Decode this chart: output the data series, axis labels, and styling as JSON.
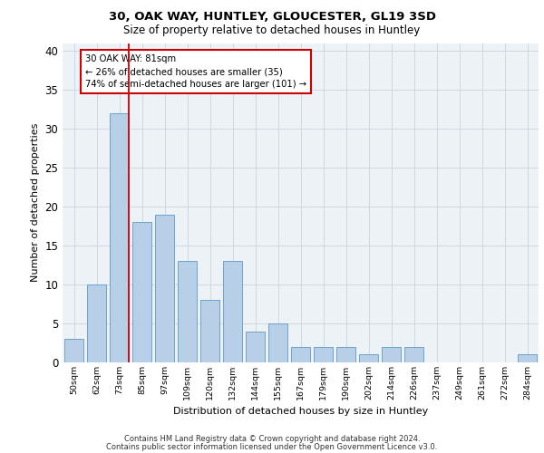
{
  "title_line1": "30, OAK WAY, HUNTLEY, GLOUCESTER, GL19 3SD",
  "title_line2": "Size of property relative to detached houses in Huntley",
  "xlabel": "Distribution of detached houses by size in Huntley",
  "ylabel": "Number of detached properties",
  "categories": [
    "50sqm",
    "62sqm",
    "73sqm",
    "85sqm",
    "97sqm",
    "109sqm",
    "120sqm",
    "132sqm",
    "144sqm",
    "155sqm",
    "167sqm",
    "179sqm",
    "190sqm",
    "202sqm",
    "214sqm",
    "226sqm",
    "237sqm",
    "249sqm",
    "261sqm",
    "272sqm",
    "284sqm"
  ],
  "values": [
    3,
    10,
    32,
    18,
    19,
    13,
    8,
    13,
    4,
    5,
    2,
    2,
    2,
    1,
    2,
    2,
    0,
    0,
    0,
    0,
    1
  ],
  "bar_color": "#b8cfe8",
  "bar_edge_color": "#6ea3cc",
  "reference_line_color": "#cc0000",
  "reference_line_x": 2.425,
  "annotation_text": "30 OAK WAY: 81sqm\n← 26% of detached houses are smaller (35)\n74% of semi-detached houses are larger (101) →",
  "annotation_box_color": "white",
  "annotation_box_edge_color": "#cc0000",
  "ylim": [
    0,
    41
  ],
  "yticks": [
    0,
    5,
    10,
    15,
    20,
    25,
    30,
    35,
    40
  ],
  "grid_color": "#c8d4e0",
  "background_color": "#edf2f7",
  "footer_line1": "Contains HM Land Registry data © Crown copyright and database right 2024.",
  "footer_line2": "Contains public sector information licensed under the Open Government Licence v3.0."
}
